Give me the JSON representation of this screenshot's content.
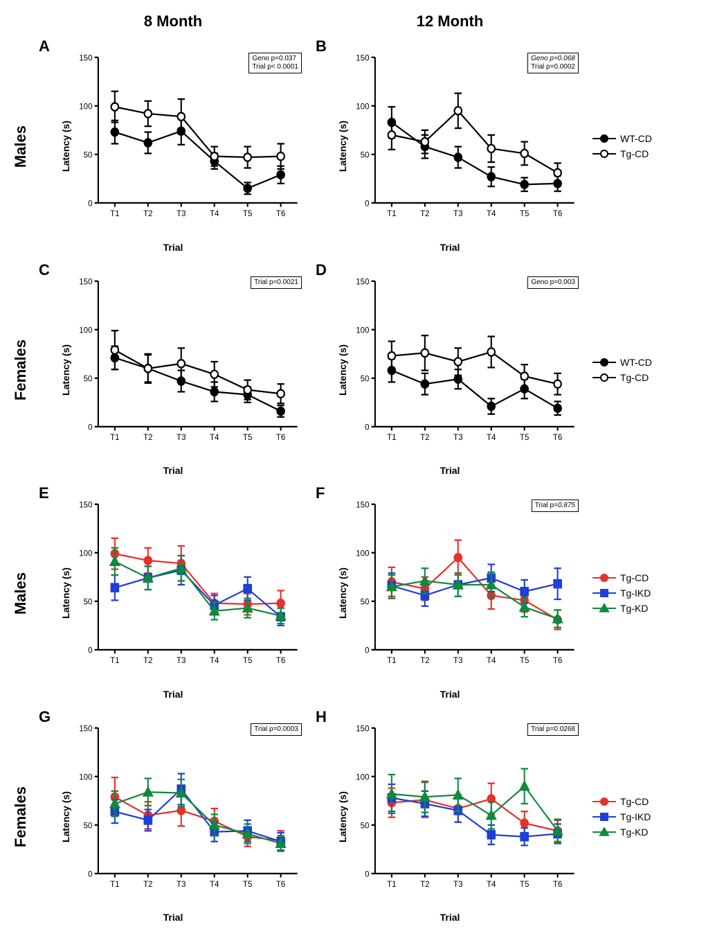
{
  "column_headers": {
    "left": "8 Month",
    "right": "12 Month"
  },
  "row_headers": [
    "Males",
    "Females",
    "Males",
    "Females"
  ],
  "axis": {
    "ylabel": "Latency (s)",
    "xlabel": "Trial",
    "xticks": [
      "T1",
      "T2",
      "T3",
      "T4",
      "T5",
      "T6"
    ],
    "ylim": [
      0,
      150
    ],
    "ytick_step": 50,
    "axis_color": "#000000",
    "axis_width": 2,
    "tick_len": 5,
    "font_size_ticks": 11,
    "font_size_labels": 14
  },
  "colors": {
    "black": "#000000",
    "white": "#ffffff",
    "red": "#e8302a",
    "blue": "#1f3fd6",
    "green": "#0f8a3c"
  },
  "marker_size": 5,
  "line_width": 2,
  "error_cap": 5,
  "legends": {
    "bw": [
      {
        "label": "WT-CD",
        "color": "#000000",
        "fill": "#000000",
        "shape": "circle"
      },
      {
        "label": "Tg-CD",
        "color": "#000000",
        "fill": "#ffffff",
        "shape": "circle"
      }
    ],
    "color": [
      {
        "label": "Tg-CD",
        "color": "#e8302a",
        "fill": "#e8302a",
        "shape": "circle"
      },
      {
        "label": "Tg-IKD",
        "color": "#1f3fd6",
        "fill": "#1f3fd6",
        "shape": "square"
      },
      {
        "label": "Tg-KD",
        "color": "#0f8a3c",
        "fill": "#0f8a3c",
        "shape": "triangle"
      }
    ]
  },
  "panels": [
    {
      "id": "A",
      "legend": "bw",
      "stat": "Geno p=0.037\nTrial p< 0.0001",
      "stat_style": "plain",
      "series": [
        {
          "key": "WT-CD",
          "y": [
            73,
            62,
            74,
            43,
            15,
            29
          ],
          "err": [
            12,
            11,
            14,
            8,
            6,
            9
          ]
        },
        {
          "key": "Tg-CD",
          "y": [
            99,
            92,
            89,
            48,
            47,
            48
          ],
          "err": [
            16,
            13,
            18,
            10,
            11,
            13
          ]
        }
      ]
    },
    {
      "id": "B",
      "legend": "bw",
      "stat": "Geno p=0.068\nTrial p=0.0002",
      "stat_style": "italic-first",
      "series": [
        {
          "key": "WT-CD",
          "y": [
            83,
            58,
            47,
            27,
            19,
            20
          ],
          "err": [
            16,
            12,
            11,
            10,
            7,
            8
          ]
        },
        {
          "key": "Tg-CD",
          "y": [
            70,
            63,
            95,
            56,
            51,
            31
          ],
          "err": [
            15,
            12,
            18,
            14,
            12,
            10
          ]
        }
      ]
    },
    {
      "id": "C",
      "legend": "bw",
      "stat": "Trial p=0.0021",
      "stat_style": "plain",
      "series": [
        {
          "key": "WT-CD",
          "y": [
            71,
            60,
            47,
            36,
            33,
            16
          ],
          "err": [
            12,
            15,
            11,
            10,
            8,
            6
          ]
        },
        {
          "key": "Tg-CD",
          "y": [
            79,
            60,
            65,
            54,
            38,
            34
          ],
          "err": [
            20,
            14,
            16,
            13,
            10,
            10
          ]
        }
      ]
    },
    {
      "id": "D",
      "legend": "bw",
      "stat": "Geno p=0.003",
      "stat_style": "plain",
      "series": [
        {
          "key": "WT-CD",
          "y": [
            58,
            44,
            49,
            21,
            39,
            19
          ],
          "err": [
            12,
            11,
            10,
            8,
            10,
            7
          ]
        },
        {
          "key": "Tg-CD",
          "y": [
            73,
            76,
            67,
            77,
            52,
            44
          ],
          "err": [
            15,
            18,
            14,
            16,
            12,
            11
          ]
        }
      ]
    },
    {
      "id": "E",
      "legend": "color",
      "stat": null,
      "series": [
        {
          "key": "Tg-CD",
          "y": [
            99,
            92,
            89,
            48,
            47,
            48
          ],
          "err": [
            16,
            13,
            18,
            10,
            11,
            13
          ]
        },
        {
          "key": "Tg-IKD",
          "y": [
            64,
            74,
            82,
            46,
            63,
            34
          ],
          "err": [
            13,
            12,
            15,
            10,
            12,
            9
          ]
        },
        {
          "key": "Tg-KD",
          "y": [
            91,
            74,
            84,
            40,
            43,
            35
          ],
          "err": [
            14,
            12,
            13,
            9,
            10,
            8
          ]
        }
      ]
    },
    {
      "id": "F",
      "legend": "color",
      "stat": "Trial p=0.875",
      "stat_style": "italic-last",
      "series": [
        {
          "key": "Tg-CD",
          "y": [
            70,
            63,
            95,
            56,
            51,
            31
          ],
          "err": [
            15,
            12,
            18,
            14,
            12,
            10
          ]
        },
        {
          "key": "Tg-IKD",
          "y": [
            66,
            56,
            67,
            74,
            60,
            68
          ],
          "err": [
            13,
            11,
            12,
            14,
            12,
            16
          ]
        },
        {
          "key": "Tg-KD",
          "y": [
            65,
            71,
            67,
            67,
            44,
            32
          ],
          "err": [
            12,
            13,
            12,
            13,
            10,
            9
          ]
        }
      ]
    },
    {
      "id": "G",
      "legend": "color",
      "stat": "Trial p=0.0003",
      "stat_style": "plain",
      "series": [
        {
          "key": "Tg-CD",
          "y": [
            79,
            60,
            65,
            54,
            38,
            34
          ],
          "err": [
            20,
            14,
            16,
            13,
            10,
            10
          ]
        },
        {
          "key": "Tg-IKD",
          "y": [
            64,
            55,
            87,
            43,
            44,
            33
          ],
          "err": [
            12,
            11,
            16,
            10,
            11,
            9
          ]
        },
        {
          "key": "Tg-KD",
          "y": [
            72,
            84,
            83,
            50,
            41,
            31
          ],
          "err": [
            13,
            14,
            14,
            11,
            10,
            8
          ]
        }
      ]
    },
    {
      "id": "H",
      "legend": "color",
      "stat": "Trial p=0.0268",
      "stat_style": "plain",
      "series": [
        {
          "key": "Tg-CD",
          "y": [
            73,
            76,
            67,
            77,
            52,
            44
          ],
          "err": [
            15,
            18,
            14,
            16,
            12,
            11
          ]
        },
        {
          "key": "Tg-IKD",
          "y": [
            78,
            72,
            65,
            40,
            38,
            41
          ],
          "err": [
            14,
            13,
            12,
            10,
            9,
            10
          ]
        },
        {
          "key": "Tg-KD",
          "y": [
            82,
            79,
            81,
            60,
            90,
            44
          ],
          "err": [
            20,
            16,
            17,
            14,
            18,
            12
          ]
        }
      ]
    }
  ],
  "layout": [
    [
      "A",
      "B",
      "bw"
    ],
    [
      "C",
      "D",
      "bw"
    ],
    [
      "E",
      "F",
      "color"
    ],
    [
      "G",
      "H",
      "color"
    ]
  ]
}
